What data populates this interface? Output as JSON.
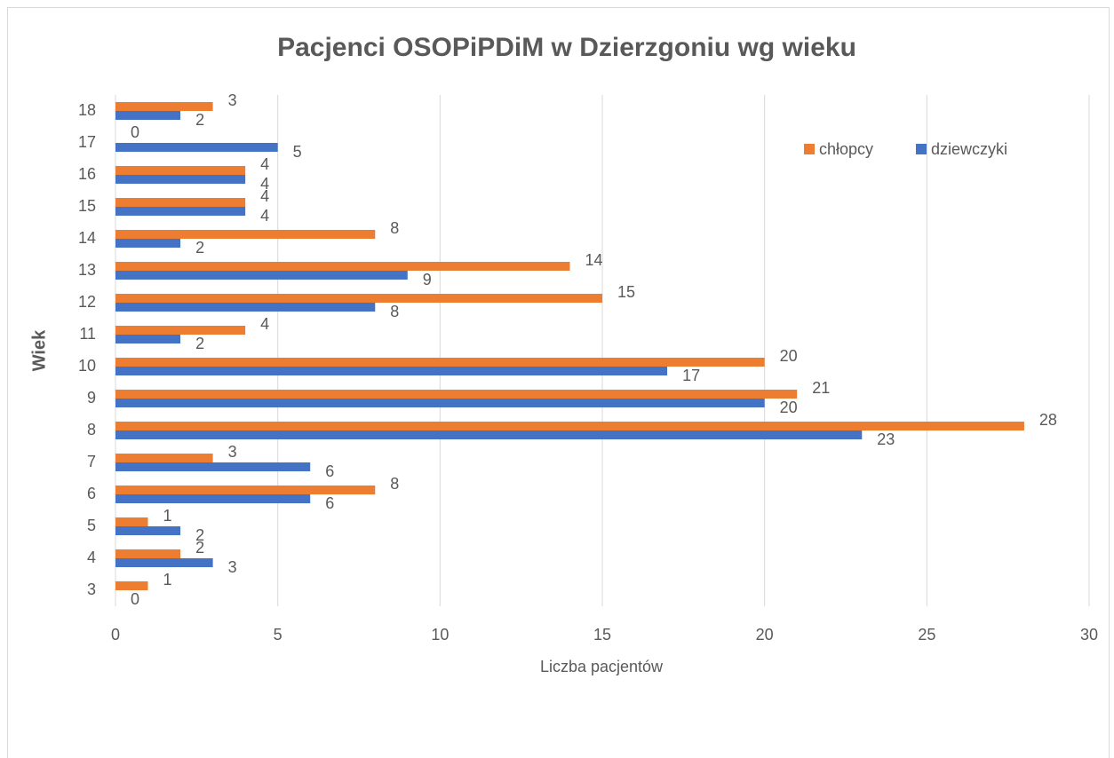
{
  "chart_data": {
    "type": "bar",
    "orientation": "horizontal",
    "title": "Pacjenci OSOPiPDiM w Dzierzgoniu wg wieku",
    "x_label": "Liczba pacjentów",
    "y_label": "Wiek",
    "categories": [
      "3",
      "4",
      "5",
      "6",
      "7",
      "8",
      "9",
      "10",
      "11",
      "12",
      "13",
      "14",
      "15",
      "16",
      "17",
      "18"
    ],
    "series": [
      {
        "name": "chłopcy",
        "color": "#ed7d31",
        "values": [
          1,
          2,
          1,
          8,
          3,
          28,
          21,
          20,
          4,
          15,
          14,
          8,
          4,
          4,
          0,
          3
        ]
      },
      {
        "name": "dziewczyki",
        "color": "#4472c4",
        "values": [
          0,
          3,
          2,
          6,
          6,
          23,
          20,
          17,
          2,
          8,
          9,
          2,
          4,
          4,
          5,
          2
        ]
      }
    ],
    "xlim": [
      0,
      30
    ],
    "xticks": [
      0,
      5,
      10,
      15,
      20,
      25,
      30
    ],
    "grid": true,
    "legend": "top-right"
  }
}
